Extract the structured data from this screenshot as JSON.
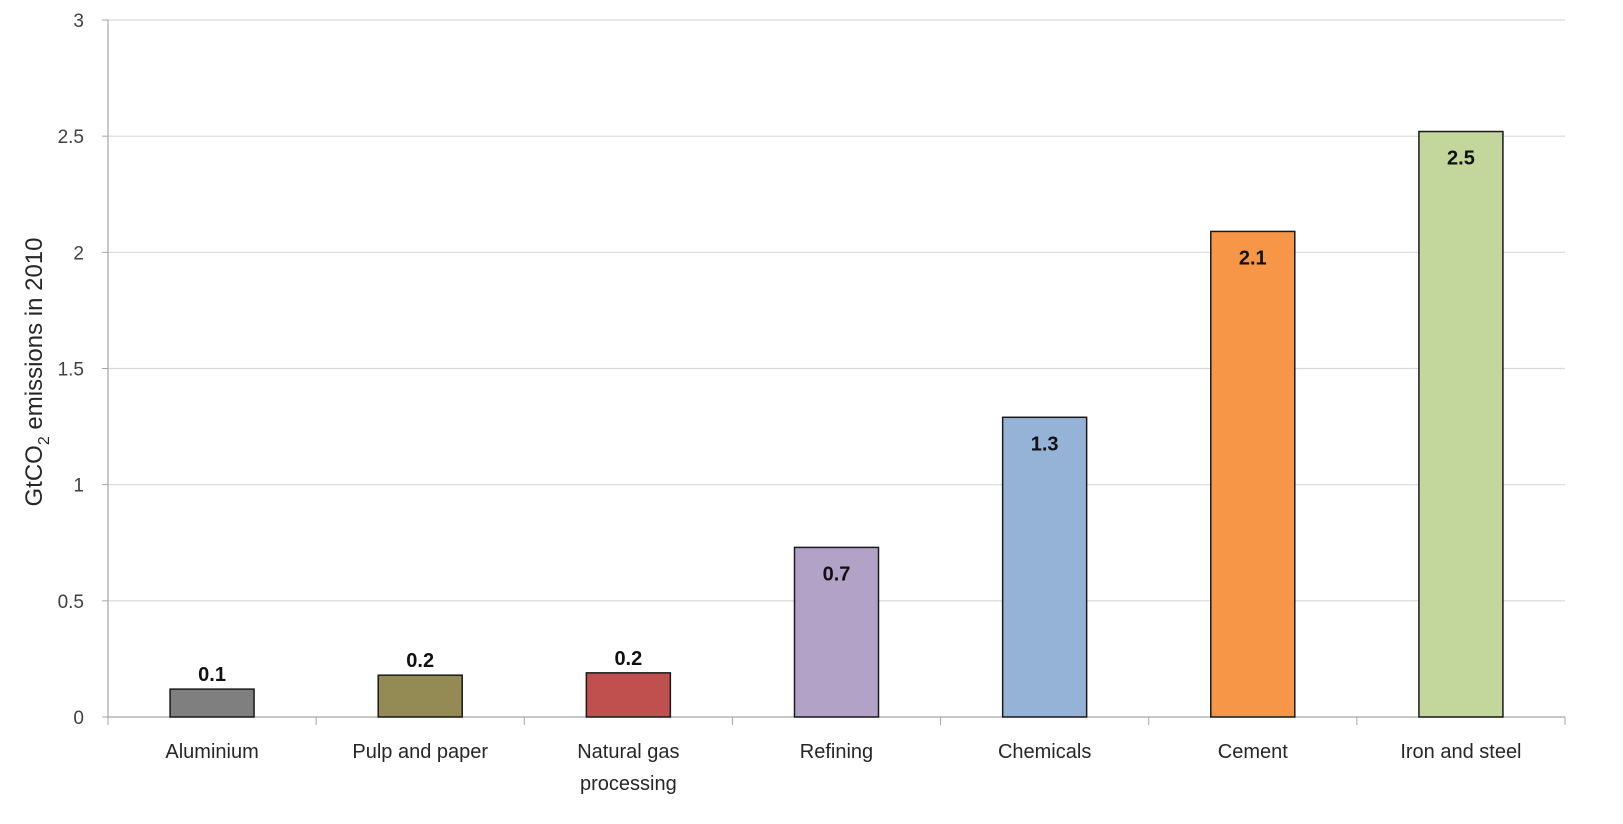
{
  "chart_data": {
    "type": "bar",
    "title": "",
    "xlabel": "",
    "ylabel_main": "GtCO",
    "ylabel_sub": "2",
    "ylabel_rest": " emissions in 2010",
    "ylim": [
      0,
      3
    ],
    "yticks": [
      "0",
      "0.5",
      "1",
      "1.5",
      "2",
      "2.5",
      "3"
    ],
    "grid": true,
    "legend": "none",
    "categories": [
      [
        "Aluminium"
      ],
      [
        "Pulp and paper"
      ],
      [
        "Natural gas",
        "processing"
      ],
      [
        "Refining"
      ],
      [
        "Chemicals"
      ],
      [
        "Cement"
      ],
      [
        "Iron and steel"
      ]
    ],
    "values": [
      0.12,
      0.18,
      0.19,
      0.73,
      1.29,
      2.09,
      2.52
    ],
    "value_labels": [
      "0.1",
      "0.2",
      "0.2",
      "0.7",
      "1.3",
      "2.1",
      "2.5"
    ],
    "colors": [
      "#7f7f7f",
      "#948a54",
      "#c0504d",
      "#b2a2c7",
      "#95b3d7",
      "#f79646",
      "#c3d69b"
    ]
  }
}
